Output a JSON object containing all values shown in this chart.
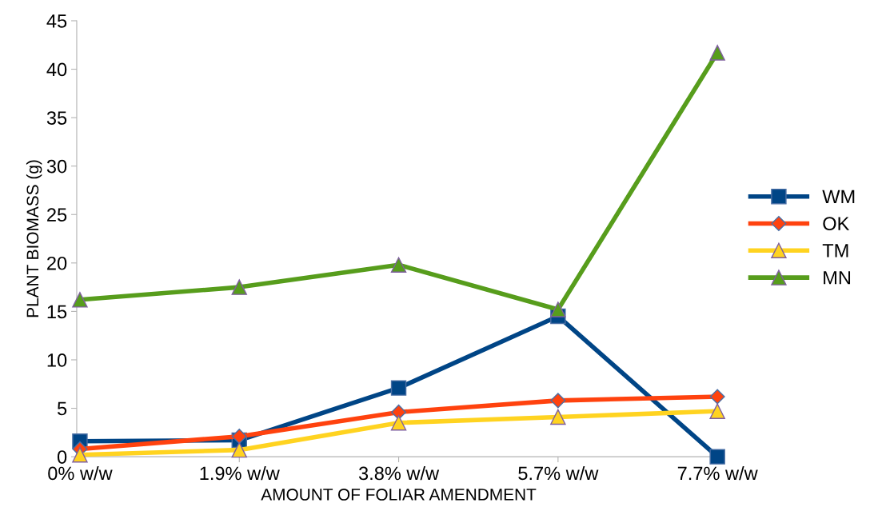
{
  "chart_data": {
    "type": "line",
    "xlabel": "AMOUNT OF FOLIAR AMENDMENT",
    "ylabel": "PLANT BIOMASS (g)",
    "categories": [
      "0% w/w",
      "1.9% w/w",
      "3.8% w/w",
      "5.7% w/w",
      "7.7% w/w"
    ],
    "series": [
      {
        "name": "WM",
        "color": "#004586",
        "marker": "square",
        "values": [
          1.6,
          1.7,
          7.1,
          14.5,
          0
        ]
      },
      {
        "name": "OK",
        "color": "#ff420e",
        "marker": "diamond",
        "values": [
          0.8,
          2.1,
          4.6,
          5.8,
          6.2
        ]
      },
      {
        "name": "TM",
        "color": "#ffd320",
        "marker": "triangle",
        "values": [
          0.2,
          0.7,
          3.5,
          4.1,
          4.7
        ]
      },
      {
        "name": "MN",
        "color": "#579d1c",
        "marker": "triangle",
        "values": [
          16.2,
          17.5,
          19.8,
          15.2,
          41.7
        ]
      }
    ],
    "ylim": [
      0,
      45
    ],
    "yticks": [
      0,
      5,
      10,
      15,
      20,
      25,
      30,
      35,
      40,
      45
    ],
    "grid": false,
    "legend": "right",
    "line_style": "solid"
  }
}
